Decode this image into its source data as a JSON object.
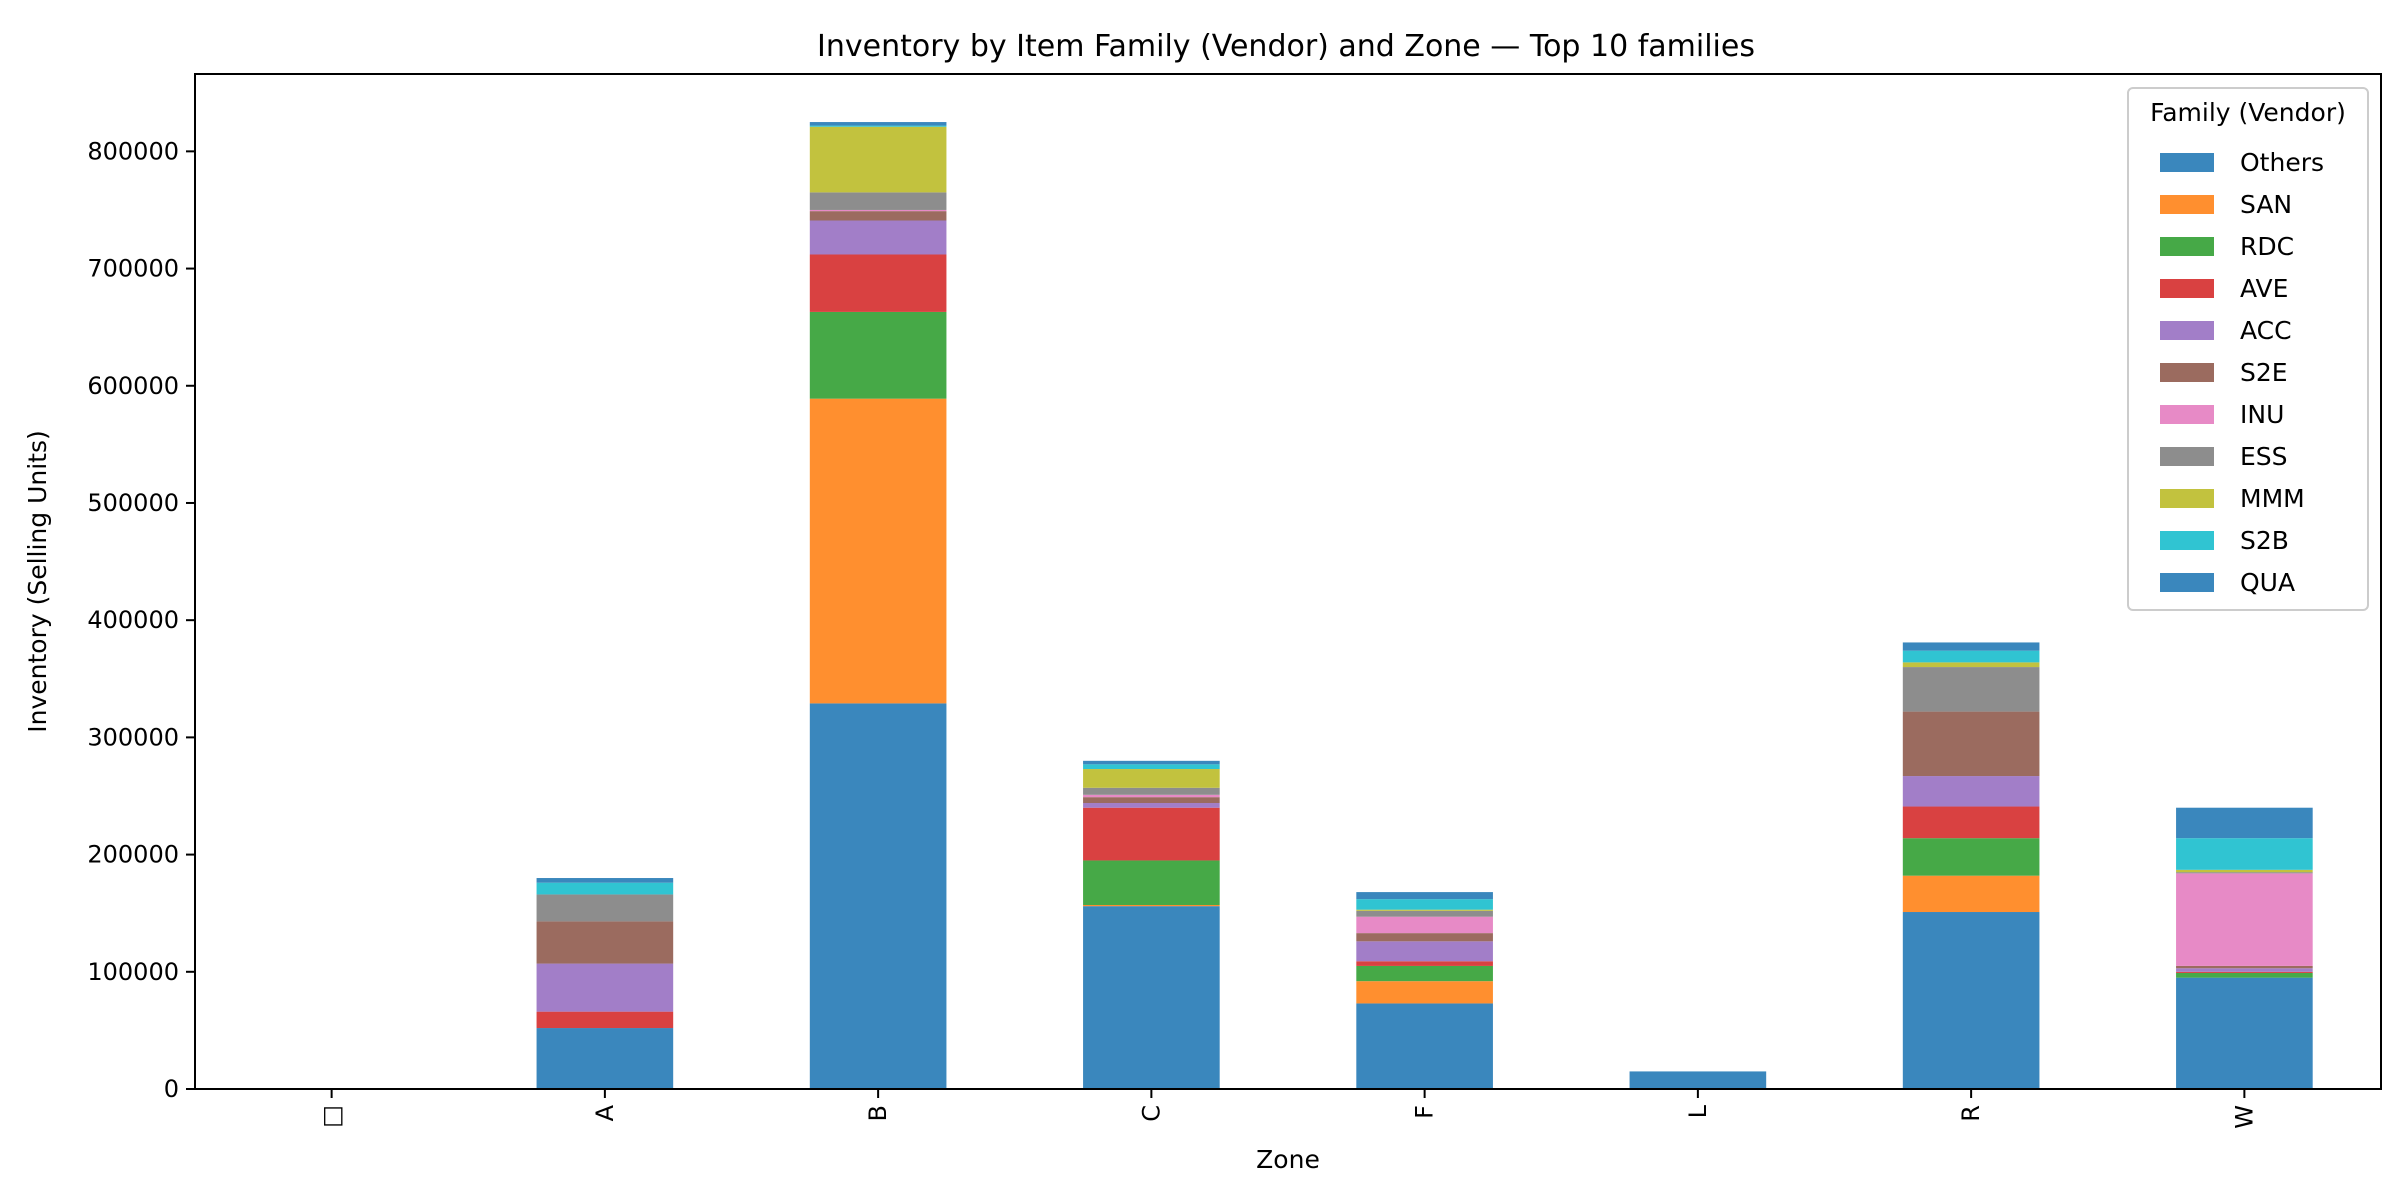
{
  "chart_data": {
    "type": "bar",
    "stacked": true,
    "title": "Inventory by Item Family (Vendor) and Zone — Top 10 families",
    "xlabel": "Zone",
    "ylabel": "Inventory (Selling Units)",
    "categories": [
      "□",
      "A",
      "B",
      "C",
      "F",
      "L",
      "R",
      "W"
    ],
    "ylim": [
      0,
      866000
    ],
    "yticks": [
      0,
      100000,
      200000,
      300000,
      400000,
      500000,
      600000,
      700000,
      800000
    ],
    "ytick_labels": [
      "0",
      "100000",
      "200000",
      "300000",
      "400000",
      "500000",
      "600000",
      "700000",
      "800000"
    ],
    "grid": false,
    "legend": {
      "title": "Family (Vendor)",
      "position": "top-right"
    },
    "series": [
      {
        "name": "Others",
        "color": "#3a87bd",
        "values": [
          0,
          52000,
          329000,
          156000,
          73000,
          15000,
          151000,
          95000
        ]
      },
      {
        "name": "SAN",
        "color": "#ff8f2f",
        "values": [
          0,
          0,
          260000,
          1000,
          19000,
          0,
          31000,
          0
        ]
      },
      {
        "name": "RDC",
        "color": "#46a947",
        "values": [
          0,
          0,
          74000,
          38000,
          13000,
          0,
          32000,
          4000
        ]
      },
      {
        "name": "AVE",
        "color": "#d94141",
        "values": [
          0,
          14000,
          49000,
          45000,
          4000,
          0,
          27000,
          1000
        ]
      },
      {
        "name": "ACC",
        "color": "#a27ec8",
        "values": [
          0,
          41000,
          29000,
          4000,
          17000,
          0,
          26000,
          3000
        ]
      },
      {
        "name": "S2E",
        "color": "#9b6b5f",
        "values": [
          0,
          36000,
          8000,
          5000,
          7000,
          0,
          55000,
          2000
        ]
      },
      {
        "name": "INU",
        "color": "#e78ac6",
        "values": [
          0,
          0,
          1000,
          2000,
          14000,
          0,
          0,
          79000
        ]
      },
      {
        "name": "ESS",
        "color": "#8d8d8d",
        "values": [
          0,
          23000,
          15000,
          6000,
          5000,
          0,
          38000,
          1000
        ]
      },
      {
        "name": "MMM",
        "color": "#c2c23e",
        "values": [
          0,
          0,
          56000,
          16000,
          1000,
          0,
          4000,
          2000
        ]
      },
      {
        "name": "S2B",
        "color": "#30c4d2",
        "values": [
          0,
          10000,
          1000,
          4000,
          9000,
          0,
          10000,
          27000
        ]
      },
      {
        "name": "QUA",
        "color": "#3a87bd",
        "values": [
          0,
          4000,
          3000,
          3000,
          6000,
          0,
          7000,
          26000
        ]
      }
    ]
  }
}
